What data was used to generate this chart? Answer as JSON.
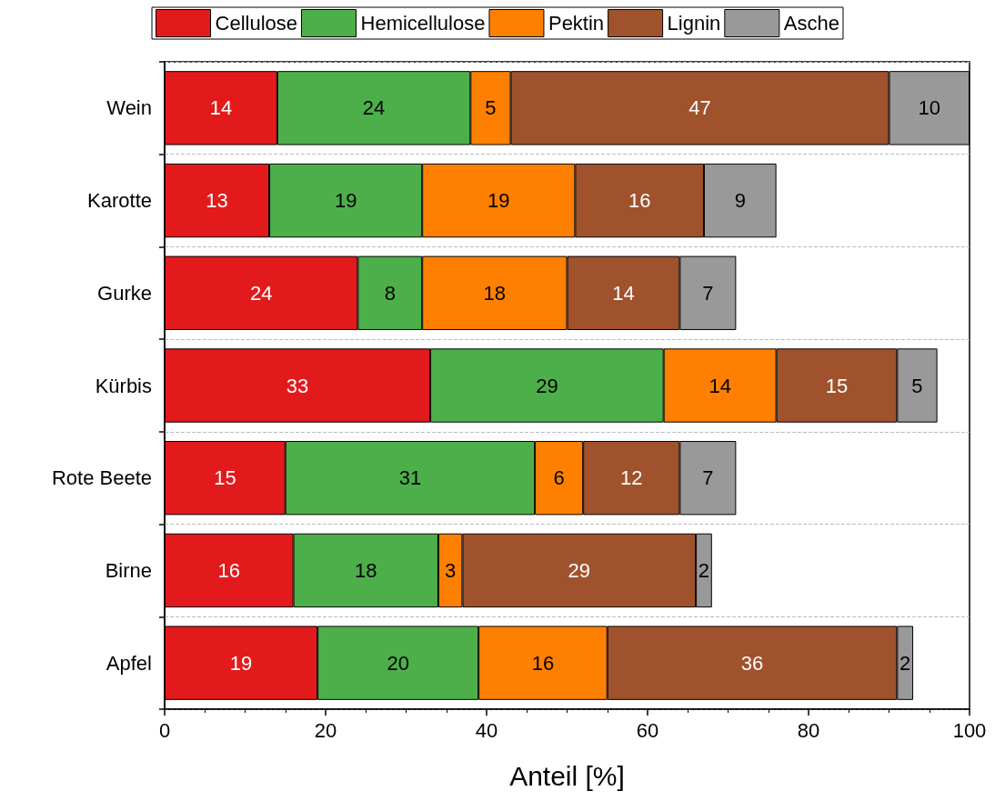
{
  "chart_data": {
    "type": "bar",
    "orientation": "horizontal",
    "stacked": true,
    "xlabel": "Anteil [%]",
    "categories": [
      "Wein",
      "Karotte",
      "Gurke",
      "Kürbis",
      "Rote Beete",
      "Birne",
      "Apfel"
    ],
    "series": [
      {
        "name": "Cellulose",
        "color": "#e31a1c",
        "values": [
          14,
          13,
          24,
          33,
          15,
          16,
          19
        ]
      },
      {
        "name": "Hemicellulose",
        "color": "#4daf4a",
        "values": [
          24,
          19,
          8,
          29,
          31,
          18,
          20
        ]
      },
      {
        "name": "Pektin",
        "color": "#ff7f00",
        "values": [
          5,
          19,
          18,
          14,
          6,
          3,
          16
        ]
      },
      {
        "name": "Lignin",
        "color": "#a0522d",
        "values": [
          47,
          16,
          14,
          15,
          12,
          29,
          36
        ]
      },
      {
        "name": "Asche",
        "color": "#999999",
        "values": [
          10,
          9,
          7,
          5,
          7,
          2,
          2
        ]
      }
    ],
    "xlim": [
      0,
      100
    ],
    "xticks": [
      0,
      20,
      40,
      60,
      80,
      100
    ],
    "grid": "y",
    "legend": "top",
    "data_labels": true
  }
}
